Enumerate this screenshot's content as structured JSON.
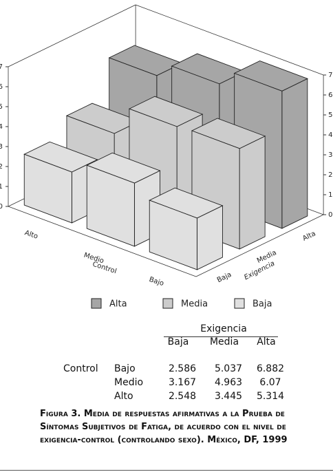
{
  "chart_data": {
    "type": "bar3d",
    "x_label": "Control",
    "depth_label": "Exigencia",
    "categories": [
      "Alto",
      "Medio",
      "Bajo"
    ],
    "series": [
      {
        "name": "Baja",
        "color": "#e0e0e0",
        "values": [
          2.548,
          3.167,
          2.586
        ]
      },
      {
        "name": "Media",
        "color": "#cccccc",
        "values": [
          3.445,
          4.963,
          5.037
        ]
      },
      {
        "name": "Alta",
        "color": "#a6a6a6",
        "values": [
          5.314,
          6.07,
          6.882
        ]
      }
    ],
    "ylim": [
      0,
      7
    ],
    "yticks": [
      0,
      1,
      2,
      3,
      4,
      5,
      6,
      7
    ]
  },
  "table": {
    "header": "Exigencia",
    "columns": [
      "Baja",
      "Media",
      "Alta"
    ],
    "row_group": "Control",
    "rows": [
      {
        "label": "Bajo",
        "cells": [
          "2.586",
          "5.037",
          "6.882"
        ]
      },
      {
        "label": "Medio",
        "cells": [
          "3.167",
          "4.963",
          "6.07"
        ]
      },
      {
        "label": "Alto",
        "cells": [
          "2.548",
          "3.445",
          "5.314"
        ]
      }
    ]
  },
  "caption": "Figura 3. Media de respuestas afirmativas a la Prueba de Síntomas Subjetivos de Fatiga, de acuerdo con el nivel de exigencia-control (controlando sexo). México, DF, 1999"
}
